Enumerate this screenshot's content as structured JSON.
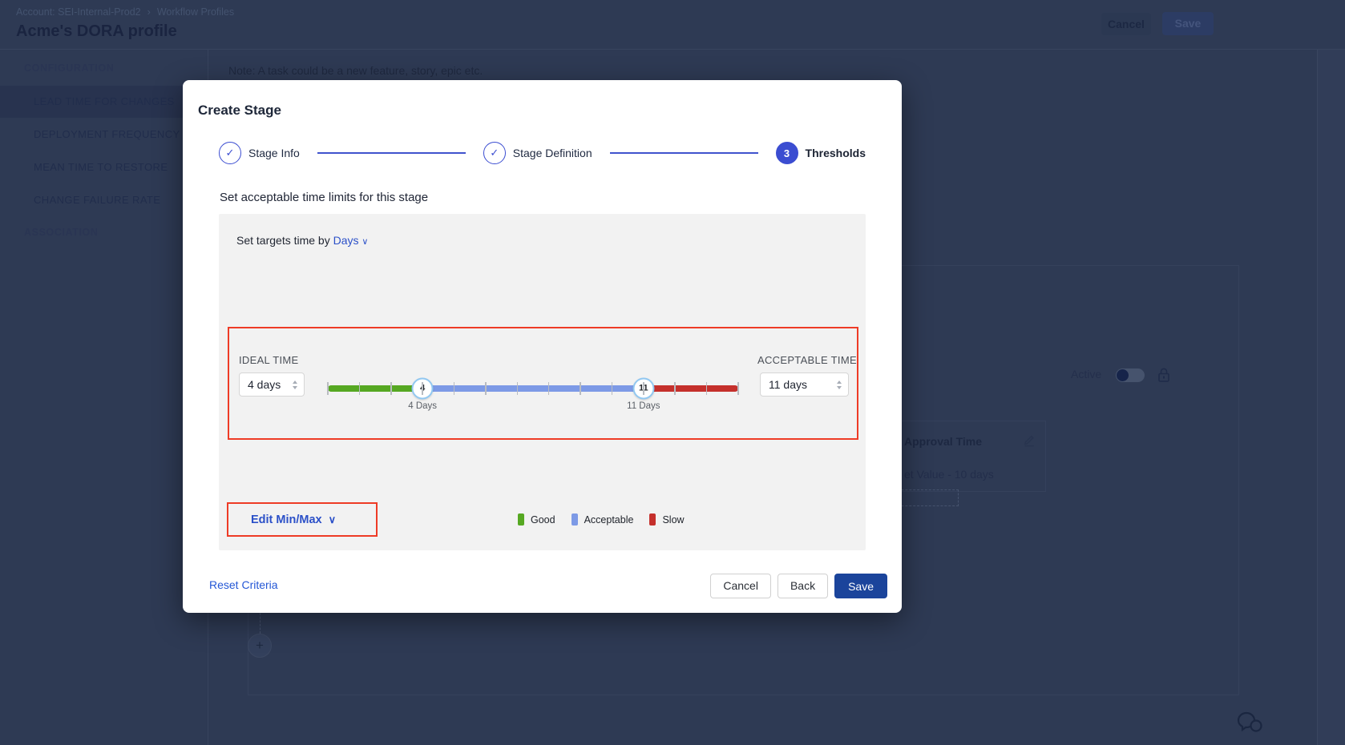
{
  "page": {
    "breadcrumb": {
      "account": "Account: SEI-Internal-Prod2",
      "separator": "›",
      "section": "Workflow Profiles"
    },
    "title": "Acme's DORA profile",
    "header_actions": {
      "cancel": "Cancel",
      "save": "Save"
    },
    "sidebar": {
      "config_label": "CONFIGURATION",
      "config_items": [
        "LEAD TIME FOR CHANGES",
        "DEPLOYMENT FREQUENCY",
        "MEAN TIME TO RESTORE",
        "CHANGE FAILURE RATE"
      ],
      "selected_item": "LEAD TIME FOR CHANGES",
      "association_label": "ASSOCIATION"
    },
    "main": {
      "note": "Note: A task could be a new feature, story, epic etc.",
      "active_label": "Active",
      "approval_card": {
        "title": "Approval Time",
        "value": "et Value - 10 days"
      },
      "plus_glyph": "+"
    }
  },
  "modal": {
    "title": "Create Stage",
    "steps": [
      {
        "label": "Stage Info",
        "state": "complete"
      },
      {
        "label": "Stage Definition",
        "state": "complete"
      },
      {
        "label": "Thresholds",
        "state": "active",
        "number": "3"
      }
    ],
    "check_glyph": "✓",
    "section_heading": "Set acceptable time limits for this stage",
    "targets": {
      "prefix": "Set targets time by",
      "unit": "Days",
      "chevron": "∨"
    },
    "threshold": {
      "ideal": {
        "label": "IDEAL TIME",
        "value": "4 days"
      },
      "acceptable": {
        "label": "ACCEPTABLE TIME",
        "value": "11 days"
      },
      "slider": {
        "min": 1,
        "max": 14,
        "lower": 4,
        "upper": 11,
        "lower_display": "4",
        "upper_display": "11",
        "lower_label": "4 Days",
        "upper_label": "11 Days"
      }
    },
    "edit_minmax": {
      "label": "Edit Min/Max",
      "chevron": "∨"
    },
    "legend": [
      {
        "label": "Good",
        "color": "#56a822"
      },
      {
        "label": "Acceptable",
        "color": "#7d9ae6"
      },
      {
        "label": "Slow",
        "color": "#c5302c"
      }
    ],
    "footer": {
      "reset": "Reset Criteria",
      "cancel": "Cancel",
      "back": "Back",
      "save": "Save"
    }
  },
  "colors": {
    "accent_blue": "#2b50c8",
    "stepper_blue": "#3b4dd1",
    "red_outline": "#ee3b26",
    "save_button": "#1b449b",
    "handle_border": "#92c8f1",
    "panel_gray": "#f2f2f2",
    "overlay_bg": "#2e3a54"
  }
}
